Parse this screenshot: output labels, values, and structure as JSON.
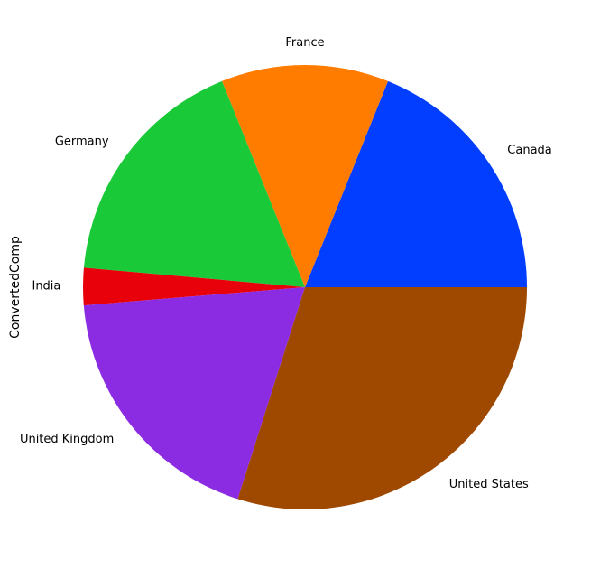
{
  "chart_data": {
    "type": "pie",
    "ylabel": "ConvertedComp",
    "categories": [
      "Canada",
      "France",
      "Germany",
      "India",
      "United Kingdom",
      "United States"
    ],
    "values": [
      18.9,
      12.2,
      17.5,
      2.7,
      18.8,
      29.9
    ],
    "colors": [
      "#023eff",
      "#ff7c00",
      "#1ac938",
      "#e8000b",
      "#8b2be2",
      "#9f4800"
    ],
    "start_angle_deg": 0,
    "direction": "counterclockwise"
  }
}
